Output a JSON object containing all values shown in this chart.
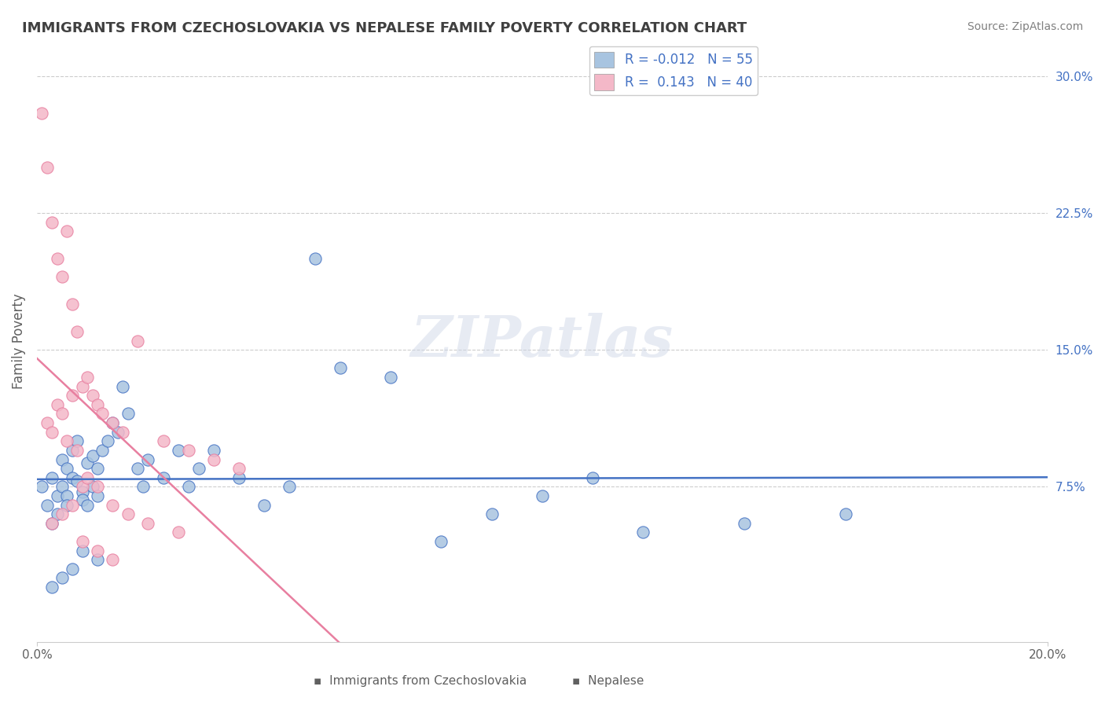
{
  "title": "IMMIGRANTS FROM CZECHOSLOVAKIA VS NEPALESE FAMILY POVERTY CORRELATION CHART",
  "source": "Source: ZipAtlas.com",
  "xlabel_bottom": "",
  "ylabel": "Family Poverty",
  "xlim": [
    0.0,
    0.2
  ],
  "ylim": [
    -0.01,
    0.32
  ],
  "x_ticks": [
    0.0,
    0.2
  ],
  "x_tick_labels": [
    "0.0%",
    "20.0%"
  ],
  "y_ticks": [
    0.075,
    0.15,
    0.225,
    0.3
  ],
  "y_tick_labels": [
    "7.5%",
    "15.0%",
    "22.5%",
    "30.0%"
  ],
  "legend_entries": [
    {
      "color": "#a8c4e0",
      "R": "-0.012",
      "N": "55",
      "label": "Immigrants from Czechoslovakia"
    },
    {
      "color": "#f4b8c8",
      "R": "0.143",
      "N": "40",
      "label": "Nepalese"
    }
  ],
  "watermark": "ZIPatlas",
  "blue_scatter_x": [
    0.001,
    0.002,
    0.003,
    0.003,
    0.004,
    0.004,
    0.005,
    0.005,
    0.006,
    0.006,
    0.006,
    0.007,
    0.007,
    0.008,
    0.008,
    0.009,
    0.009,
    0.01,
    0.01,
    0.011,
    0.011,
    0.012,
    0.012,
    0.013,
    0.014,
    0.015,
    0.016,
    0.017,
    0.018,
    0.02,
    0.021,
    0.022,
    0.025,
    0.028,
    0.03,
    0.032,
    0.035,
    0.04,
    0.045,
    0.05,
    0.055,
    0.06,
    0.07,
    0.08,
    0.09,
    0.1,
    0.11,
    0.12,
    0.14,
    0.16,
    0.003,
    0.005,
    0.007,
    0.009,
    0.012
  ],
  "blue_scatter_y": [
    0.075,
    0.065,
    0.055,
    0.08,
    0.07,
    0.06,
    0.09,
    0.075,
    0.085,
    0.07,
    0.065,
    0.095,
    0.08,
    0.1,
    0.078,
    0.072,
    0.068,
    0.088,
    0.065,
    0.092,
    0.075,
    0.085,
    0.07,
    0.095,
    0.1,
    0.11,
    0.105,
    0.13,
    0.115,
    0.085,
    0.075,
    0.09,
    0.08,
    0.095,
    0.075,
    0.085,
    0.095,
    0.08,
    0.065,
    0.075,
    0.2,
    0.14,
    0.135,
    0.045,
    0.06,
    0.07,
    0.08,
    0.05,
    0.055,
    0.06,
    0.02,
    0.025,
    0.03,
    0.04,
    0.035
  ],
  "pink_scatter_x": [
    0.001,
    0.002,
    0.003,
    0.004,
    0.005,
    0.006,
    0.007,
    0.008,
    0.009,
    0.01,
    0.011,
    0.012,
    0.013,
    0.015,
    0.017,
    0.02,
    0.025,
    0.03,
    0.035,
    0.04,
    0.002,
    0.003,
    0.004,
    0.005,
    0.006,
    0.007,
    0.008,
    0.009,
    0.01,
    0.012,
    0.015,
    0.018,
    0.022,
    0.028,
    0.003,
    0.005,
    0.007,
    0.009,
    0.012,
    0.015
  ],
  "pink_scatter_y": [
    0.28,
    0.25,
    0.22,
    0.2,
    0.19,
    0.215,
    0.175,
    0.16,
    0.13,
    0.135,
    0.125,
    0.12,
    0.115,
    0.11,
    0.105,
    0.155,
    0.1,
    0.095,
    0.09,
    0.085,
    0.11,
    0.105,
    0.12,
    0.115,
    0.1,
    0.125,
    0.095,
    0.075,
    0.08,
    0.075,
    0.065,
    0.06,
    0.055,
    0.05,
    0.055,
    0.06,
    0.065,
    0.045,
    0.04,
    0.035
  ],
  "blue_line_color": "#4472c4",
  "pink_line_color": "#e87fa0",
  "scatter_blue_face": "#a8c4e0",
  "scatter_blue_edge": "#4472c4",
  "scatter_pink_face": "#f4b8c8",
  "scatter_pink_edge": "#e87fa0",
  "background_color": "#ffffff",
  "grid_color": "#cccccc",
  "title_color": "#404040",
  "source_color": "#808080"
}
